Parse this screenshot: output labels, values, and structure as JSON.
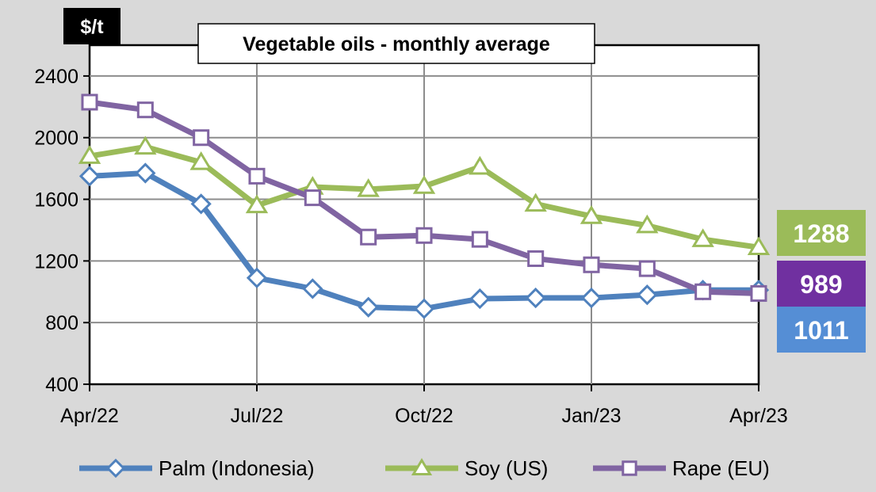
{
  "chart_data": {
    "type": "line",
    "title": "Vegetable oils - monthly average",
    "ylabel": "$/t",
    "xlabel": "",
    "ylim": [
      400,
      2600
    ],
    "yticks": [
      400,
      800,
      1200,
      1600,
      2000,
      2400
    ],
    "x": [
      "Apr/22",
      "May/22",
      "Jun/22",
      "Jul/22",
      "Aug/22",
      "Sep/22",
      "Oct/22",
      "Nov/22",
      "Dec/22",
      "Jan/23",
      "Feb/23",
      "Mar/23",
      "Apr/23"
    ],
    "x_tick_labels": [
      {
        "index": 0,
        "label": "Apr/22"
      },
      {
        "index": 3,
        "label": "Jul/22"
      },
      {
        "index": 6,
        "label": "Oct/22"
      },
      {
        "index": 9,
        "label": "Jan/23"
      },
      {
        "index": 12,
        "label": "Apr/23"
      }
    ],
    "grid": true,
    "legend_position": "bottom",
    "series": [
      {
        "name": "Palm (Indonesia)",
        "color": "#4f81bd",
        "marker": "diamond",
        "values": [
          1750,
          1770,
          1570,
          1090,
          1020,
          900,
          890,
          955,
          960,
          960,
          980,
          1011,
          1011
        ]
      },
      {
        "name": "Soy (US)",
        "color": "#9bbb59",
        "marker": "triangle",
        "values": [
          1880,
          1940,
          1840,
          1560,
          1680,
          1665,
          1685,
          1810,
          1570,
          1490,
          1430,
          1340,
          1288
        ]
      },
      {
        "name": "Rape (EU)",
        "color": "#8064a2",
        "marker": "square",
        "values": [
          2230,
          2180,
          2000,
          1750,
          1610,
          1355,
          1365,
          1340,
          1215,
          1175,
          1150,
          1000,
          989
        ]
      }
    ],
    "end_labels": [
      {
        "series": "Soy (US)",
        "text": "1288",
        "color": "#9bbb59"
      },
      {
        "series": "Rape (EU)",
        "text": "989",
        "color": "#7030a0"
      },
      {
        "series": "Palm (Indonesia)",
        "text": "1011",
        "color": "#558ed5"
      }
    ]
  }
}
